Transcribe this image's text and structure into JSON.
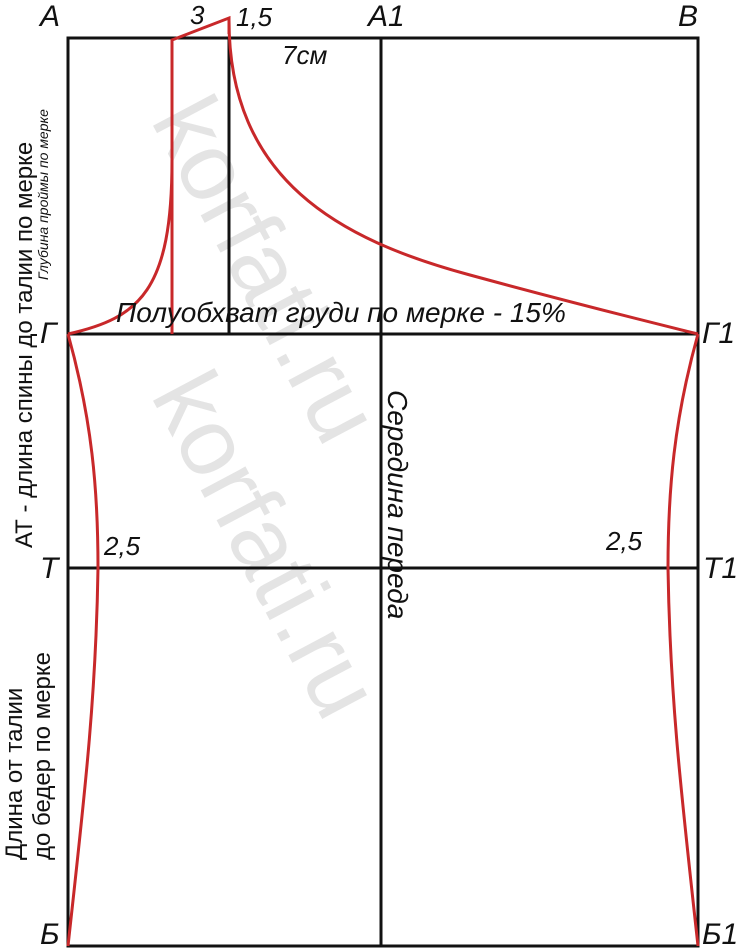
{
  "watermark": "korfati.ru",
  "points": {
    "A": "А",
    "A1": "А1",
    "B": "В",
    "G": "Г",
    "G1": "Г1",
    "T": "Т",
    "T1": "Т1",
    "Bu": "Б",
    "Bu1": "Б1"
  },
  "measures": {
    "top_offset": "3",
    "top_rise": "1,5",
    "width_7": "7см",
    "waist_left": "2,5",
    "waist_right": "2,5"
  },
  "labels": {
    "bust": "Полуобхват груди по мерке - 15%",
    "center_front": "Середина переда",
    "back_length": "АТ - длина спины до талии по мерке",
    "armhole_depth": "Глубина проймы по мерке",
    "hip_length_1": "Длина от талии",
    "hip_length_2": "до бедер по мерке"
  },
  "colors": {
    "line": "#111111",
    "pattern": "#c8282a",
    "watermark": "#cfcfcf"
  }
}
